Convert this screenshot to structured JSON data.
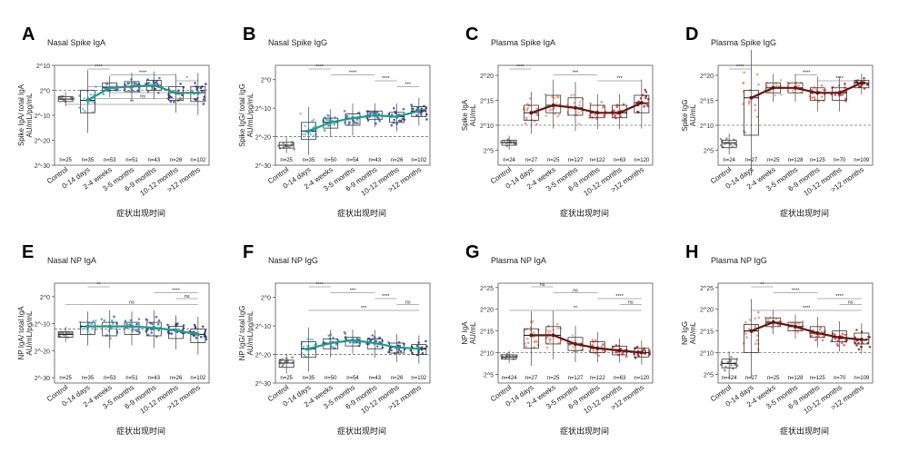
{
  "figure": {
    "x_title": "症状出现时间",
    "tick_labels": [
      "Control",
      "0-14 days",
      "2-4 weeks",
      "3-5 months",
      "6-9 months",
      "10-12 months",
      ">12 months"
    ]
  },
  "chart_data": [
    {
      "letter": "A",
      "type": "box",
      "title": "Nasal Spike IgA",
      "ylabel_lines": [
        "Spike IgA/ total IgA",
        "AU/mL/pg/mL"
      ],
      "ytick_values": [
        -30,
        -20,
        -10,
        0,
        10
      ],
      "ytick_labels": [
        "2^-30",
        "2^-20",
        "2^-10",
        "2^0",
        "2^10"
      ],
      "ylim": [
        -30,
        10
      ],
      "cutoff": 0,
      "palette": "blue",
      "medians": [
        -3.5,
        -4.0,
        1.0,
        1.5,
        2.0,
        -1.0,
        -1.0
      ],
      "q1": [
        -4.5,
        -9.0,
        0,
        -0.5,
        0,
        -4.0,
        -4.5
      ],
      "q3": [
        -2.5,
        0,
        3.0,
        3.5,
        4.0,
        1.5,
        1.5
      ],
      "trend": [
        null,
        -4.0,
        1.0,
        1.5,
        2.0,
        -1.0,
        -1.0
      ],
      "n_labels": [
        "n=25",
        "n=35",
        "n=53",
        "n=51",
        "n=43",
        "n=26",
        "n=102"
      ],
      "brackets": [
        {
          "from": 1,
          "to": 2,
          "label": "****"
        },
        {
          "from": 2,
          "to": 5,
          "label": "****"
        },
        {
          "from": 5,
          "to": 6,
          "label": "*"
        },
        {
          "from": 1,
          "to": 5,
          "label": "***"
        },
        {
          "from": 2,
          "to": 6,
          "label": "***"
        },
        {
          "from": 1,
          "to": 6,
          "label": "ns"
        },
        {
          "from": 0,
          "to": 6,
          "label": "**"
        }
      ]
    },
    {
      "letter": "B",
      "type": "box",
      "title": "Nasal Spike IgG",
      "ylabel_lines": [
        "Spike IgG/ total IgG",
        "AU/mL/pg/mL"
      ],
      "ytick_values": [
        -30,
        -20,
        -10,
        0
      ],
      "ytick_labels": [
        "2^-30",
        "2^-20",
        "2^-10",
        "2^0"
      ],
      "ylim": [
        -30,
        5
      ],
      "cutoff": -20,
      "palette": "blue",
      "medians": [
        -23.0,
        -18.0,
        -15.0,
        -13.5,
        -12.5,
        -13.0,
        -11.0
      ],
      "q1": [
        -24.0,
        -21.0,
        -17.0,
        -16.0,
        -14.0,
        -15.0,
        -13.0
      ],
      "q3": [
        -22.0,
        -15.0,
        -13.5,
        -12.0,
        -11.0,
        -11.5,
        -9.5
      ],
      "trend": [
        null,
        -18.0,
        -15.0,
        -13.5,
        -12.5,
        -13.0,
        -11.0
      ],
      "n_labels": [
        "n=25",
        "n=35",
        "n=50",
        "n=54",
        "n=43",
        "n=26",
        "n=102"
      ],
      "brackets": [
        {
          "from": 1,
          "to": 2,
          "label": "****"
        },
        {
          "from": 2,
          "to": 4,
          "label": "****"
        },
        {
          "from": 4,
          "to": 5,
          "label": "****"
        },
        {
          "from": 5,
          "to": 6,
          "label": "***"
        }
      ]
    },
    {
      "letter": "C",
      "type": "box",
      "title": "Plasma Spike IgA",
      "ylabel_lines": [
        "Spike IgA",
        "AU/mL"
      ],
      "ytick_values": [
        5,
        10,
        15,
        20
      ],
      "ytick_labels": [
        "2^5",
        "2^10",
        "2^15",
        "2^20"
      ],
      "ylim": [
        2,
        22
      ],
      "cutoff": 10,
      "palette": "red",
      "medians": [
        6.5,
        12.5,
        14.0,
        13.5,
        12.5,
        12.5,
        14.5
      ],
      "q1": [
        6.0,
        11.0,
        12.5,
        12.0,
        11.5,
        11.5,
        12.5
      ],
      "q3": [
        7.0,
        14.0,
        16.0,
        15.5,
        14.0,
        14.0,
        16.0
      ],
      "trend": [
        null,
        12.5,
        14.0,
        13.5,
        12.5,
        12.5,
        14.5
      ],
      "n_labels": [
        "n=24",
        "n=27",
        "n=25",
        "n=127",
        "n=122",
        "n=63",
        "n=120"
      ],
      "brackets": [
        {
          "from": 0,
          "to": 1,
          "label": "****"
        },
        {
          "from": 2,
          "to": 4,
          "label": "***"
        },
        {
          "from": 4,
          "to": 6,
          "label": "***"
        }
      ]
    },
    {
      "letter": "D",
      "type": "box",
      "title": "Plasma Spike IgG",
      "ylabel_lines": [
        "Spike IgG",
        "AU/mL"
      ],
      "ytick_values": [
        5,
        10,
        15,
        20
      ],
      "ytick_labels": [
        "2^5",
        "2^10",
        "2^15",
        "2^20"
      ],
      "ylim": [
        2,
        22
      ],
      "cutoff": 10,
      "palette": "red",
      "medians": [
        6.5,
        15.5,
        17.5,
        17.5,
        16.5,
        16.5,
        18.5
      ],
      "q1": [
        5.5,
        8.0,
        16.5,
        16.5,
        15.0,
        15.0,
        17.5
      ],
      "q3": [
        7.0,
        17.0,
        18.5,
        18.5,
        17.5,
        17.5,
        19.0
      ],
      "trend": [
        null,
        15.5,
        17.5,
        17.5,
        16.5,
        16.5,
        18.5
      ],
      "n_labels": [
        "n=24",
        "n=27",
        "n=25",
        "n=128",
        "n=125",
        "n=70",
        "n=109"
      ],
      "brackets": [
        {
          "from": 0,
          "to": 1,
          "label": "****"
        },
        {
          "from": 3,
          "to": 4,
          "label": "****"
        },
        {
          "from": 4,
          "to": 6,
          "label": "****"
        }
      ]
    },
    {
      "letter": "E",
      "type": "box",
      "title": "Nasal NP IgA",
      "ylabel_lines": [
        "NP IgA/ total IgA",
        "AU/mL/pg/mL"
      ],
      "ytick_values": [
        -30,
        -20,
        -10,
        0
      ],
      "ytick_labels": [
        "2^-30",
        "2^-20",
        "2^-10",
        "2^0"
      ],
      "ylim": [
        -32,
        5
      ],
      "cutoff": -12,
      "palette": "blue",
      "medians": [
        -14.0,
        -11.0,
        -11.0,
        -11.0,
        -11.5,
        -12.5,
        -14.0
      ],
      "q1": [
        -15.0,
        -14.0,
        -14.5,
        -14.0,
        -14.5,
        -15.5,
        -17.0
      ],
      "q3": [
        -13.0,
        -9.5,
        -9.5,
        -9.5,
        -9.5,
        -11.0,
        -12.0
      ],
      "trend": [
        null,
        -11.0,
        -11.0,
        -11.0,
        -11.5,
        -12.5,
        -14.0
      ],
      "n_labels": [
        "n=25",
        "n=35",
        "n=53",
        "n=51",
        "n=43",
        "n=26",
        "n=102"
      ],
      "brackets": [
        {
          "from": 1,
          "to": 2,
          "label": "**"
        },
        {
          "from": 4,
          "to": 6,
          "label": "****"
        },
        {
          "from": 5,
          "to": 6,
          "label": "ns"
        },
        {
          "from": 0,
          "to": 6,
          "label": "ns"
        }
      ]
    },
    {
      "letter": "F",
      "type": "box",
      "title": "Nasal NP IgG",
      "ylabel_lines": [
        "NP IgG/ total IgG",
        "AU/mL/pg/mL"
      ],
      "ytick_values": [
        -30,
        -20,
        -10,
        0
      ],
      "ytick_labels": [
        "2^-30",
        "2^-20",
        "2^-10",
        "2^0"
      ],
      "ylim": [
        -30,
        5
      ],
      "cutoff": -20,
      "palette": "blue",
      "medians": [
        -23.0,
        -18.0,
        -16.0,
        -15.0,
        -16.0,
        -17.5,
        -18.0
      ],
      "q1": [
        -24.5,
        -21.0,
        -18.0,
        -17.0,
        -18.0,
        -19.5,
        -20.0
      ],
      "q3": [
        -22.0,
        -15.5,
        -14.5,
        -14.0,
        -14.5,
        -16.0,
        -16.5
      ],
      "trend": [
        null,
        -18.0,
        -16.0,
        -15.0,
        -16.0,
        -17.5,
        -18.0
      ],
      "n_labels": [
        "n=25",
        "n=35",
        "n=50",
        "n=54",
        "n=43",
        "n=26",
        "n=102"
      ],
      "brackets": [
        {
          "from": 1,
          "to": 2,
          "label": "****"
        },
        {
          "from": 2,
          "to": 4,
          "label": "***"
        },
        {
          "from": 4,
          "to": 5,
          "label": "****"
        },
        {
          "from": 5,
          "to": 6,
          "label": "ns"
        },
        {
          "from": 1,
          "to": 6,
          "label": "***"
        }
      ]
    },
    {
      "letter": "G",
      "type": "box",
      "title": "Plasma NP IgA",
      "ylabel_lines": [
        "NP IgA",
        "AU/mL"
      ],
      "ytick_values": [
        5,
        10,
        15,
        20,
        25
      ],
      "ytick_labels": [
        "2^5",
        "2^10",
        "2^15",
        "2^20",
        "2^25"
      ],
      "ylim": [
        3,
        26
      ],
      "cutoff": 10,
      "palette": "red",
      "medians": [
        9.0,
        14.0,
        14.0,
        12.0,
        11.0,
        10.5,
        10.0
      ],
      "q1": [
        8.5,
        11.0,
        12.0,
        10.5,
        10.0,
        9.5,
        9.0
      ],
      "q3": [
        9.5,
        15.5,
        16.0,
        13.5,
        12.5,
        11.5,
        11.0
      ],
      "trend": [
        null,
        14.0,
        14.0,
        12.0,
        11.0,
        10.5,
        10.0
      ],
      "n_labels": [
        "n=424",
        "n=27",
        "n=25",
        "n=127",
        "n=122",
        "n=63",
        "n=120"
      ],
      "brackets": [
        {
          "from": 1,
          "to": 2,
          "label": "ns"
        },
        {
          "from": 2,
          "to": 4,
          "label": "ns"
        },
        {
          "from": 4,
          "to": 6,
          "label": "****"
        },
        {
          "from": 5,
          "to": 6,
          "label": "ns"
        },
        {
          "from": 0,
          "to": 6,
          "label": "**"
        }
      ]
    },
    {
      "letter": "H",
      "type": "box",
      "title": "Plasma NP IgG",
      "ylabel_lines": [
        "NP IgG",
        "AU/mL"
      ],
      "ytick_values": [
        5,
        10,
        15,
        20,
        25
      ],
      "ytick_labels": [
        "2^5",
        "2^10",
        "2^15",
        "2^20",
        "2^25"
      ],
      "ylim": [
        3,
        26
      ],
      "cutoff": 10,
      "palette": "red",
      "medians": [
        7.5,
        15.0,
        17.0,
        16.0,
        14.5,
        13.5,
        13.0
      ],
      "q1": [
        6.5,
        10.0,
        16.0,
        15.0,
        13.5,
        12.5,
        12.0
      ],
      "q3": [
        8.5,
        16.5,
        18.0,
        17.0,
        16.0,
        15.0,
        14.5
      ],
      "trend": [
        null,
        15.0,
        17.0,
        16.0,
        14.5,
        13.5,
        13.0
      ],
      "n_labels": [
        "n=424",
        "n=27",
        "n=25",
        "n=128",
        "n=125",
        "n=70",
        "n=109"
      ],
      "brackets": [
        {
          "from": 1,
          "to": 2,
          "label": "**"
        },
        {
          "from": 2,
          "to": 4,
          "label": "****"
        },
        {
          "from": 4,
          "to": 6,
          "label": "****"
        },
        {
          "from": 5,
          "to": 6,
          "label": "ns"
        },
        {
          "from": 1,
          "to": 6,
          "label": "****"
        }
      ]
    }
  ],
  "colors": {
    "blue": [
      "#808080",
      "#5fc3ea",
      "#4a92cc",
      "#3f73b8",
      "#3a55a8",
      "#2c3a92",
      "#22307a"
    ],
    "red": [
      "#808080",
      "#e9876a",
      "#ec9a7a",
      "#f0a48a",
      "#e8705a",
      "#d44040",
      "#a01818"
    ],
    "trend_blue": "#1a9e8c",
    "trend_red": "#6a1212"
  }
}
